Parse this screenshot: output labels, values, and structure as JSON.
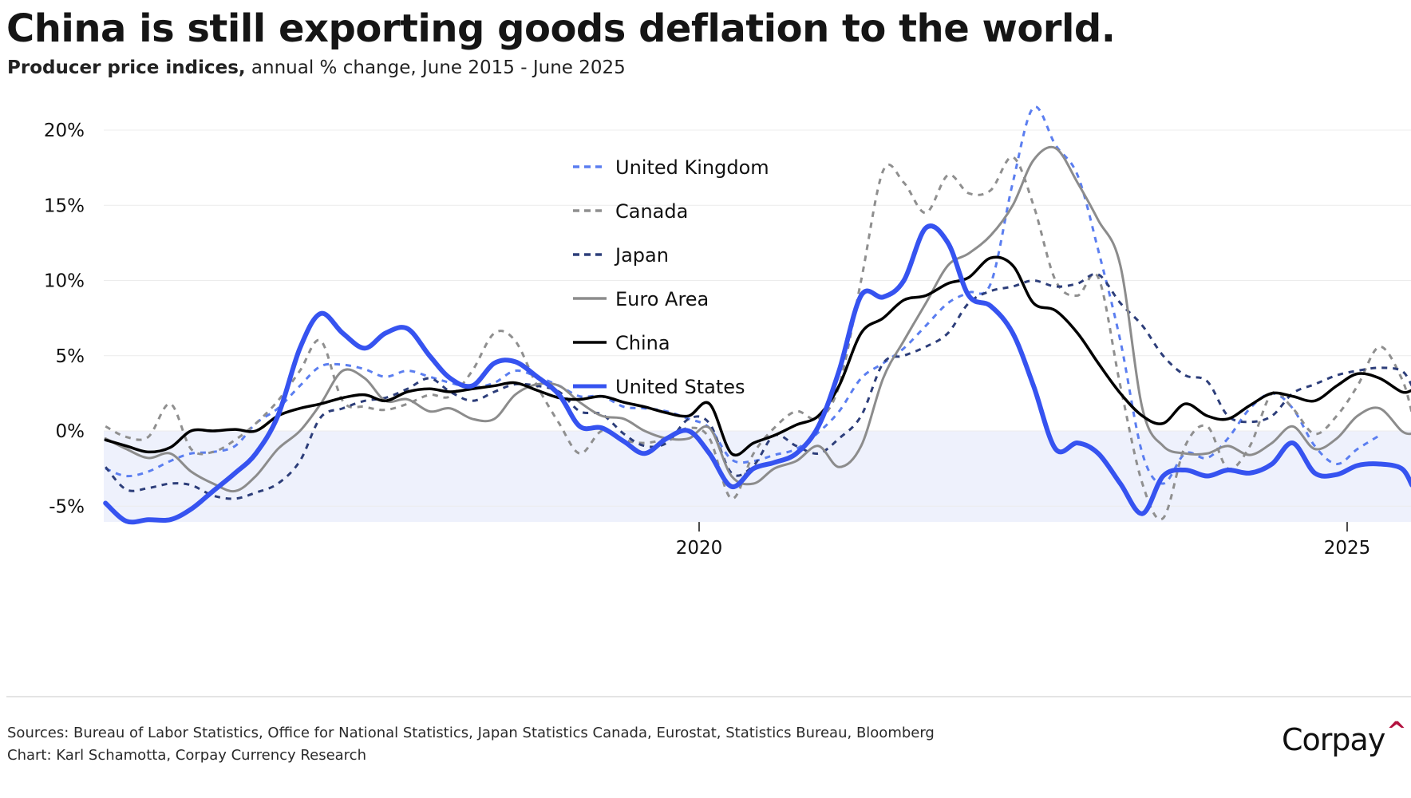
{
  "header": {
    "title": "China is still exporting goods deflation to the world.",
    "subtitle_strong": "Producer price indices,",
    "subtitle_rest": " annual % change, June 2015 - June 2025"
  },
  "footer": {
    "sources": "Sources: Bureau of Labor Statistics, Office for National Statistics, Japan Statistics Canada, Eurostat, Statistics Bureau, Bloomberg",
    "credit": "Chart: Karl Schamotta, Corpay Currency Research",
    "logo_text": "Corpay",
    "logo_mark": "^",
    "logo_mark_color": "#b3123f"
  },
  "chart_data": {
    "type": "line",
    "title": "China is still exporting goods deflation to the world.",
    "subtitle": "Producer price indices, annual % change, June 2015 - June 2025",
    "xlabel": "",
    "ylabel": "",
    "xlim": [
      2015.42,
      2025.5
    ],
    "ylim": [
      -6,
      21
    ],
    "y_ticks": [
      -5,
      0,
      5,
      10,
      15,
      20
    ],
    "y_tick_labels": [
      "-5%",
      "0%",
      "5%",
      "10%",
      "15%",
      "20%"
    ],
    "x_ticks": [
      2020,
      2025
    ],
    "x_tick_labels": [
      "2020",
      "2025"
    ],
    "grid": "horizontal",
    "negative_region_shaded": true,
    "shade_color": "#eef1fc",
    "legend": "top-center",
    "x": [
      2015.42,
      2015.58,
      2015.75,
      2015.92,
      2016.08,
      2016.25,
      2016.42,
      2016.58,
      2016.75,
      2016.92,
      2017.08,
      2017.25,
      2017.42,
      2017.58,
      2017.75,
      2017.92,
      2018.08,
      2018.25,
      2018.42,
      2018.58,
      2018.75,
      2018.92,
      2019.08,
      2019.25,
      2019.42,
      2019.58,
      2019.75,
      2019.92,
      2020.08,
      2020.25,
      2020.42,
      2020.58,
      2020.75,
      2020.92,
      2021.08,
      2021.25,
      2021.42,
      2021.58,
      2021.75,
      2021.92,
      2022.08,
      2022.25,
      2022.42,
      2022.58,
      2022.75,
      2022.92,
      2023.08,
      2023.25,
      2023.42,
      2023.58,
      2023.75,
      2023.92,
      2024.08,
      2024.25,
      2024.42,
      2024.58,
      2024.75,
      2024.92,
      2025.08,
      2025.25,
      2025.42,
      2025.5
    ],
    "series": [
      {
        "name": "United Kingdom",
        "color": "#5b7ef0",
        "style": "dashed",
        "width": 3,
        "values": [
          -2.5,
          -3.0,
          -2.7,
          -2.0,
          -1.5,
          -1.4,
          -1.0,
          0.5,
          1.5,
          3.0,
          4.3,
          4.4,
          4.1,
          3.6,
          4.0,
          3.6,
          3.2,
          2.9,
          3.2,
          4.0,
          3.6,
          3.0,
          2.3,
          2.3,
          1.6,
          1.5,
          1.3,
          0.8,
          0.2,
          -1.9,
          -2.0,
          -1.6,
          -1.2,
          -0.1,
          1.3,
          3.5,
          4.5,
          5.5,
          7.0,
          8.5,
          9.2,
          9.8,
          16.5,
          21.5,
          19.0,
          17.0,
          12.0,
          6.0,
          -1.5,
          -3.5,
          -1.5,
          -1.8,
          -0.5,
          1.5,
          2.5,
          1.5,
          -1.0,
          -2.2,
          -1.2,
          -0.3,
          null,
          null
        ]
      },
      {
        "name": "Canada",
        "color": "#8f8f8f",
        "style": "dashed",
        "width": 3,
        "values": [
          0.3,
          -0.4,
          -0.4,
          1.8,
          -1.2,
          -1.4,
          -0.6,
          0.5,
          2.0,
          4.0,
          6.0,
          2.0,
          1.6,
          1.4,
          1.8,
          2.4,
          2.3,
          4.0,
          6.5,
          6.0,
          3.0,
          0.5,
          -1.5,
          0.0,
          -0.6,
          -0.8,
          -0.5,
          0.2,
          -0.5,
          -4.5,
          -1.5,
          0.2,
          1.3,
          0.8,
          3.0,
          10.0,
          17.3,
          16.5,
          14.5,
          17.0,
          15.8,
          16.0,
          18.2,
          15.0,
          10.0,
          9.0,
          10.2,
          3.0,
          -3.5,
          -5.8,
          -1.0,
          0.3,
          -2.5,
          -1.0,
          2.5,
          1.5,
          -0.2,
          1.0,
          3.0,
          5.6,
          3.5,
          1.2
        ]
      },
      {
        "name": "Japan",
        "color": "#2d3e7a",
        "style": "dashed",
        "width": 3,
        "values": [
          -2.4,
          -3.9,
          -3.8,
          -3.5,
          -3.6,
          -4.3,
          -4.5,
          -4.1,
          -3.5,
          -2.0,
          0.9,
          1.5,
          2.0,
          2.2,
          2.8,
          3.5,
          2.6,
          2.0,
          2.6,
          3.1,
          3.0,
          2.6,
          1.3,
          1.1,
          -0.2,
          -1.0,
          -0.8,
          0.8,
          0.5,
          -2.8,
          -2.3,
          -0.3,
          -1.0,
          -1.5,
          -0.5,
          1.0,
          4.5,
          5.0,
          5.6,
          6.5,
          8.5,
          9.3,
          9.6,
          10.0,
          9.6,
          9.8,
          10.4,
          8.5,
          7.0,
          5.0,
          3.7,
          3.3,
          1.0,
          0.6,
          1.0,
          2.5,
          3.1,
          3.7,
          4.0,
          4.2,
          4.0,
          3.0
        ]
      },
      {
        "name": "Euro Area",
        "color": "#8c8c8c",
        "style": "solid",
        "width": 3,
        "values": [
          -0.5,
          -1.2,
          -1.8,
          -1.5,
          -2.7,
          -3.5,
          -4.0,
          -3.0,
          -1.2,
          0.0,
          1.8,
          4.0,
          3.5,
          2.0,
          2.1,
          1.3,
          1.5,
          0.8,
          0.8,
          2.4,
          3.1,
          3.0,
          1.9,
          1.0,
          0.8,
          0.0,
          -0.5,
          -0.5,
          0.2,
          -3.0,
          -3.5,
          -2.5,
          -2.0,
          -1.0,
          -2.4,
          -1.0,
          3.5,
          6.0,
          8.5,
          11.0,
          11.8,
          13.0,
          15.0,
          18.0,
          18.8,
          16.5,
          14.0,
          11.0,
          1.5,
          -1.0,
          -1.5,
          -1.5,
          -1.0,
          -1.6,
          -0.8,
          0.3,
          -1.2,
          -0.5,
          1.0,
          1.5,
          0.0,
          -0.2
        ]
      },
      {
        "name": "China",
        "color": "#000000",
        "style": "solid",
        "width": 3.5,
        "values": [
          -0.6,
          -1.0,
          -1.4,
          -1.1,
          0.0,
          0.0,
          0.1,
          0.0,
          1.0,
          1.5,
          1.8,
          2.2,
          2.4,
          2.0,
          2.6,
          2.8,
          2.6,
          2.8,
          3.0,
          3.2,
          2.7,
          2.2,
          2.1,
          2.3,
          1.9,
          1.6,
          1.2,
          1.0,
          1.8,
          -1.5,
          -0.8,
          -0.3,
          0.4,
          1.0,
          3.0,
          6.5,
          7.5,
          8.7,
          9.0,
          9.8,
          10.2,
          11.5,
          11.0,
          8.5,
          8.0,
          6.5,
          4.5,
          2.5,
          1.0,
          0.5,
          1.8,
          1.0,
          0.8,
          1.7,
          2.5,
          2.3,
          2.0,
          3.0,
          3.8,
          3.5,
          2.6,
          2.7
        ]
      },
      {
        "name": "United States",
        "color": "#3653f0",
        "style": "solid",
        "width": 6,
        "values": [
          -4.8,
          -6.0,
          -5.9,
          -5.9,
          -5.2,
          -4.0,
          -2.8,
          -1.5,
          1.0,
          5.5,
          7.8,
          6.5,
          5.5,
          6.5,
          6.8,
          5.0,
          3.5,
          3.0,
          4.5,
          4.6,
          3.6,
          2.4,
          0.3,
          0.2,
          -0.7,
          -1.5,
          -0.5,
          0.0,
          -1.5,
          -3.7,
          -2.5,
          -2.1,
          -1.5,
          0.3,
          4.0,
          9.0,
          8.9,
          10.0,
          13.5,
          12.5,
          9.0,
          8.3,
          6.5,
          3.0,
          -1.2,
          -0.8,
          -1.5,
          -3.5,
          -5.5,
          -3.0,
          -2.6,
          -3.0,
          -2.6,
          -2.8,
          -2.2,
          -0.8,
          -2.8,
          -2.9,
          -2.3,
          -2.2,
          -2.5,
          -3.6
        ]
      }
    ]
  }
}
